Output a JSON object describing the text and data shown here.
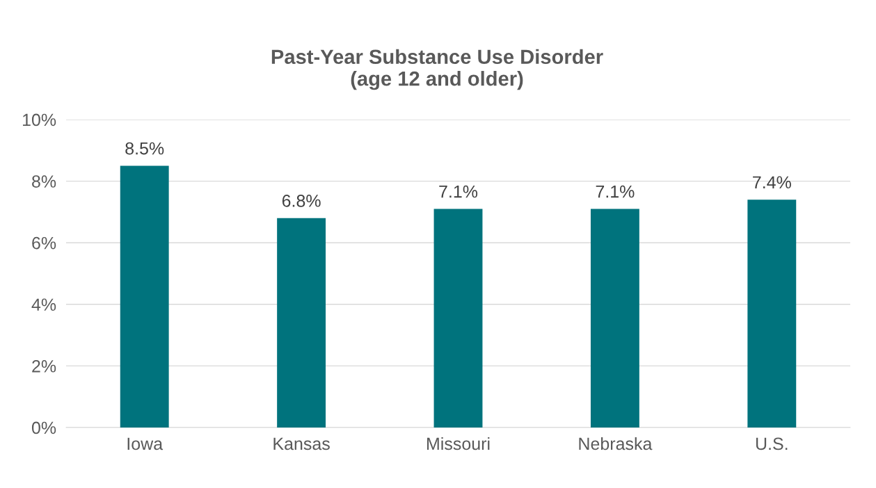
{
  "chart_data": {
    "type": "bar",
    "title": "Past-Year Substance Use Disorder\n(age 12 and older)",
    "categories": [
      "Iowa",
      "Kansas",
      "Missouri",
      "Nebraska",
      "U.S."
    ],
    "values": [
      8.5,
      6.8,
      7.1,
      7.1,
      7.4
    ],
    "value_labels": [
      "8.5%",
      "6.8%",
      "7.1%",
      "7.1%",
      "7.4%"
    ],
    "color": "#00737d",
    "ylim": [
      0,
      10
    ],
    "yticks": [
      {
        "value": 0,
        "label": "0%"
      },
      {
        "value": 2,
        "label": "2%"
      },
      {
        "value": 4,
        "label": "4%"
      },
      {
        "value": 6,
        "label": "6%"
      },
      {
        "value": 8,
        "label": "8%"
      },
      {
        "value": 10,
        "label": "10%"
      }
    ],
    "grid": "y"
  }
}
